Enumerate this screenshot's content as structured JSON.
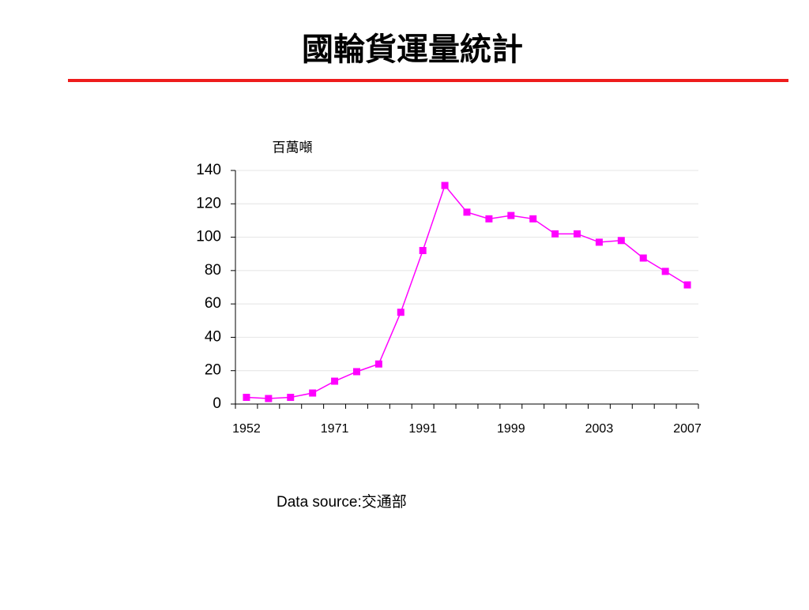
{
  "chart_data": {
    "type": "line",
    "title": "國輪貨運量統計",
    "y_label": "百萬噸",
    "source": "Data source:交通部",
    "categories": [
      "1952",
      null,
      null,
      null,
      "1971",
      null,
      null,
      null,
      "1991",
      null,
      null,
      null,
      "1999",
      null,
      null,
      null,
      "2003",
      null,
      null,
      null,
      "2007"
    ],
    "series": [
      {
        "name": "貨運量",
        "color": "#ff00ff",
        "values": [
          4,
          3.3,
          4,
          6.6,
          13.7,
          19.4,
          24,
          55,
          92,
          131,
          115,
          111,
          113,
          111,
          102,
          102,
          97,
          98,
          87.5,
          79.5,
          71.4
        ]
      }
    ],
    "ylim": [
      0,
      140
    ],
    "yticks": [
      0,
      20,
      40,
      60,
      80,
      100,
      120,
      140
    ],
    "grid": true
  }
}
